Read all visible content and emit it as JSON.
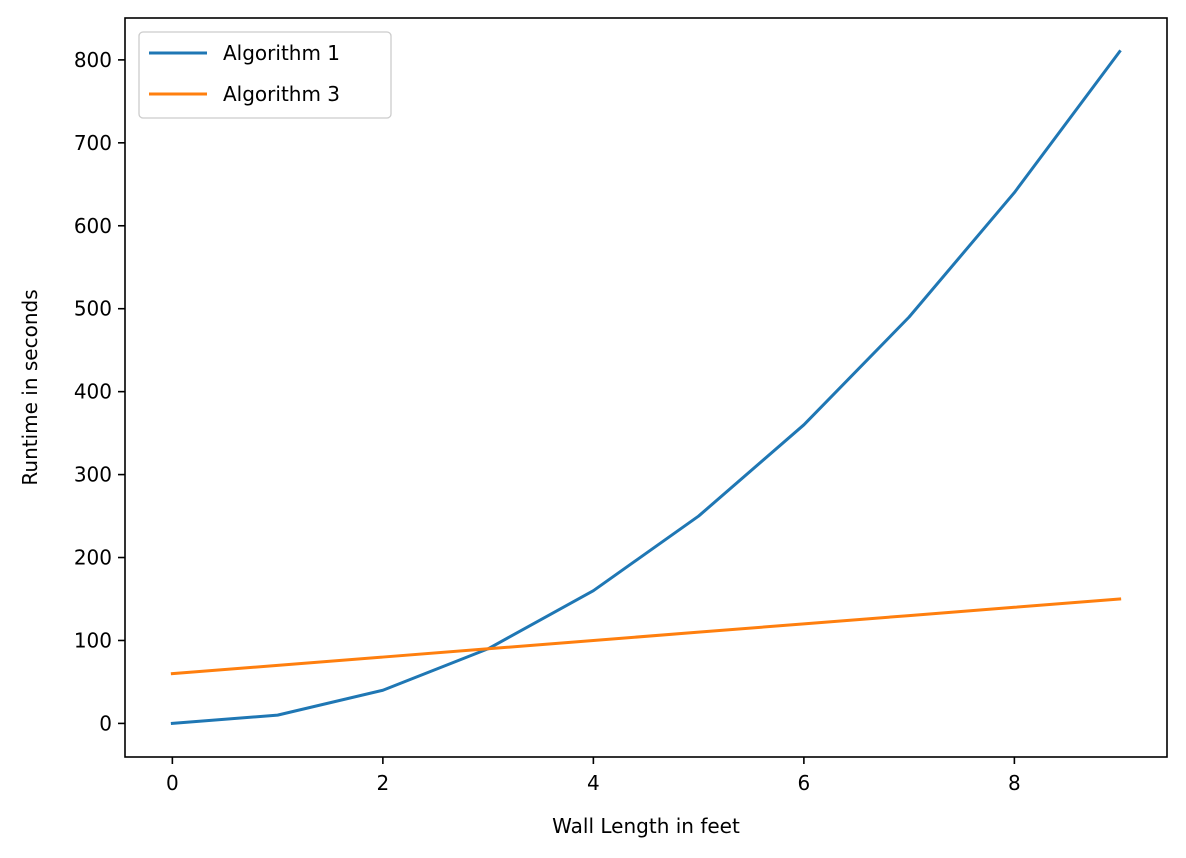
{
  "chart_data": {
    "type": "line",
    "title": "",
    "xlabel": "Wall Length in feet",
    "ylabel": "Runtime in seconds",
    "xlim": [
      -0.45,
      9.45
    ],
    "ylim": [
      -40.5,
      850.5
    ],
    "xticks": [
      0,
      2,
      4,
      6,
      8
    ],
    "yticks": [
      0,
      100,
      200,
      300,
      400,
      500,
      600,
      700,
      800
    ],
    "xtick_labels": [
      "0",
      "2",
      "4",
      "6",
      "8"
    ],
    "ytick_labels": [
      "0",
      "100",
      "200",
      "300",
      "400",
      "500",
      "600",
      "700",
      "800"
    ],
    "grid": false,
    "legend_position": "top-left",
    "x": [
      0,
      1,
      2,
      3,
      4,
      5,
      6,
      7,
      8,
      9
    ],
    "series": [
      {
        "name": "Algorithm 1",
        "color": "#1f77b4",
        "values": [
          0,
          10,
          40,
          90,
          160,
          250,
          360,
          490,
          640,
          810
        ]
      },
      {
        "name": "Algorithm 3",
        "color": "#ff7f0e",
        "values": [
          60,
          70,
          80,
          90,
          100,
          110,
          120,
          130,
          140,
          150
        ]
      }
    ]
  }
}
